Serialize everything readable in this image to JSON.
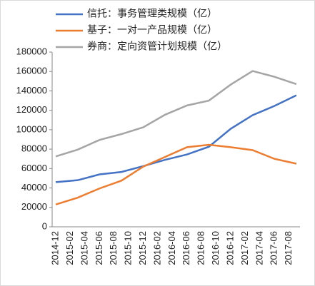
{
  "chart_data": {
    "type": "line",
    "categories": [
      "2014-12",
      null,
      "2015-02",
      null,
      "2015-04",
      null,
      "2015-06",
      null,
      "2015-08",
      null,
      "2015-10",
      null,
      "2015-12",
      null,
      "2016-02",
      null,
      "2016-04",
      null,
      "2016-06",
      null,
      "2016-08",
      null,
      "2016-10",
      null,
      "2016-12",
      null,
      "2017-02",
      null,
      "2017-04",
      null,
      "2017-06",
      null,
      "2017-08",
      null
    ],
    "month_keys": [
      "2014-12",
      "2015-01",
      "2015-02",
      "2015-03",
      "2015-04",
      "2015-05",
      "2015-06",
      "2015-07",
      "2015-08",
      "2015-09",
      "2015-10",
      "2015-11",
      "2015-12",
      "2016-01",
      "2016-02",
      "2016-03",
      "2016-04",
      "2016-05",
      "2016-06",
      "2016-07",
      "2016-08",
      "2016-09",
      "2016-10",
      "2016-11",
      "2016-12",
      "2017-01",
      "2017-02",
      "2017-03",
      "2017-04",
      "2017-05",
      "2017-06",
      "2017-07",
      "2017-08",
      "2017-09"
    ],
    "x": [
      "2014-12",
      "2015-03",
      "2015-06",
      "2015-09",
      "2015-12",
      "2016-03",
      "2016-06",
      "2016-09",
      "2016-12",
      "2017-03",
      "2017-06",
      "2017-09"
    ],
    "series": [
      {
        "name": "信托：事务管理类规模（亿）",
        "color": "#4472c4",
        "values": [
          46000,
          48000,
          54000,
          56500,
          62500,
          69000,
          74500,
          82500,
          101000,
          115000,
          124500,
          135500
        ]
      },
      {
        "name": "基子：一对一产品规模（亿）",
        "color": "#ed7d31",
        "values": [
          23000,
          30000,
          39500,
          47500,
          62000,
          72000,
          82000,
          84500,
          82000,
          79000,
          70000,
          65000
        ]
      },
      {
        "name": "券商：定向资管计划规模（亿）",
        "color": "#a5a5a5",
        "values": [
          72500,
          79500,
          89500,
          95500,
          102500,
          115500,
          125000,
          130000,
          146500,
          160500,
          154500,
          147000
        ]
      }
    ],
    "ylim": [
      0,
      180000
    ],
    "yticks": [
      0,
      20000,
      40000,
      60000,
      80000,
      100000,
      120000,
      140000,
      160000,
      180000
    ],
    "legend": "top-left"
  }
}
